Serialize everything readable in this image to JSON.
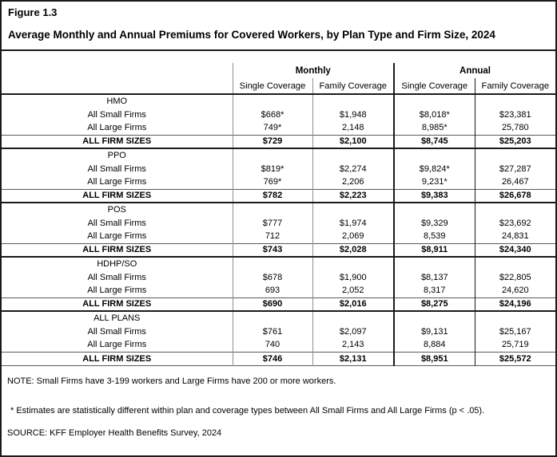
{
  "figure_label": "Figure 1.3",
  "title": "Average Monthly and Annual Premiums for Covered Workers, by Plan Type and Firm Size, 2024",
  "table": {
    "group_headers": [
      "Monthly",
      "Annual"
    ],
    "sub_headers": [
      "Single Coverage",
      "Family Coverage",
      "Single Coverage",
      "Family Coverage"
    ],
    "sections": [
      {
        "name": "HMO",
        "rows": [
          {
            "label": "All Small Firms",
            "bold": false,
            "values": [
              "$668*",
              "$1,948",
              "$8,018*",
              "$23,381"
            ]
          },
          {
            "label": "All Large Firms",
            "bold": false,
            "values": [
              "749*",
              "2,148",
              "8,985*",
              "25,780"
            ]
          },
          {
            "label": "ALL FIRM SIZES",
            "bold": true,
            "values": [
              "$729",
              "$2,100",
              "$8,745",
              "$25,203"
            ]
          }
        ]
      },
      {
        "name": "PPO",
        "rows": [
          {
            "label": "All Small Firms",
            "bold": false,
            "values": [
              "$819*",
              "$2,274",
              "$9,824*",
              "$27,287"
            ]
          },
          {
            "label": "All Large Firms",
            "bold": false,
            "values": [
              "769*",
              "2,206",
              "9,231*",
              "26,467"
            ]
          },
          {
            "label": "ALL FIRM SIZES",
            "bold": true,
            "values": [
              "$782",
              "$2,223",
              "$9,383",
              "$26,678"
            ]
          }
        ]
      },
      {
        "name": "POS",
        "rows": [
          {
            "label": "All Small Firms",
            "bold": false,
            "values": [
              "$777",
              "$1,974",
              "$9,329",
              "$23,692"
            ]
          },
          {
            "label": "All Large Firms",
            "bold": false,
            "values": [
              "712",
              "2,069",
              "8,539",
              "24,831"
            ]
          },
          {
            "label": "ALL FIRM SIZES",
            "bold": true,
            "values": [
              "$743",
              "$2,028",
              "$8,911",
              "$24,340"
            ]
          }
        ]
      },
      {
        "name": "HDHP/SO",
        "rows": [
          {
            "label": "All Small Firms",
            "bold": false,
            "values": [
              "$678",
              "$1,900",
              "$8,137",
              "$22,805"
            ]
          },
          {
            "label": "All Large Firms",
            "bold": false,
            "values": [
              "693",
              "2,052",
              "8,317",
              "24,620"
            ]
          },
          {
            "label": "ALL FIRM SIZES",
            "bold": true,
            "values": [
              "$690",
              "$2,016",
              "$8,275",
              "$24,196"
            ]
          }
        ]
      },
      {
        "name": "ALL PLANS",
        "rows": [
          {
            "label": "All Small Firms",
            "bold": false,
            "values": [
              "$761",
              "$2,097",
              "$9,131",
              "$25,167"
            ]
          },
          {
            "label": "All Large Firms",
            "bold": false,
            "values": [
              "740",
              "2,143",
              "8,884",
              "25,719"
            ]
          },
          {
            "label": "ALL FIRM SIZES",
            "bold": true,
            "values": [
              "$746",
              "$2,131",
              "$8,951",
              "$25,572"
            ]
          }
        ]
      }
    ]
  },
  "notes": {
    "note": "NOTE: Small Firms have 3-199 workers and Large Firms have 200 or more workers.",
    "estimates": "* Estimates are statistically different within plan and coverage types between All Small Firms and All Large Firms (p < .05).",
    "source": "SOURCE: KFF Employer Health Benefits Survey, 2024"
  }
}
